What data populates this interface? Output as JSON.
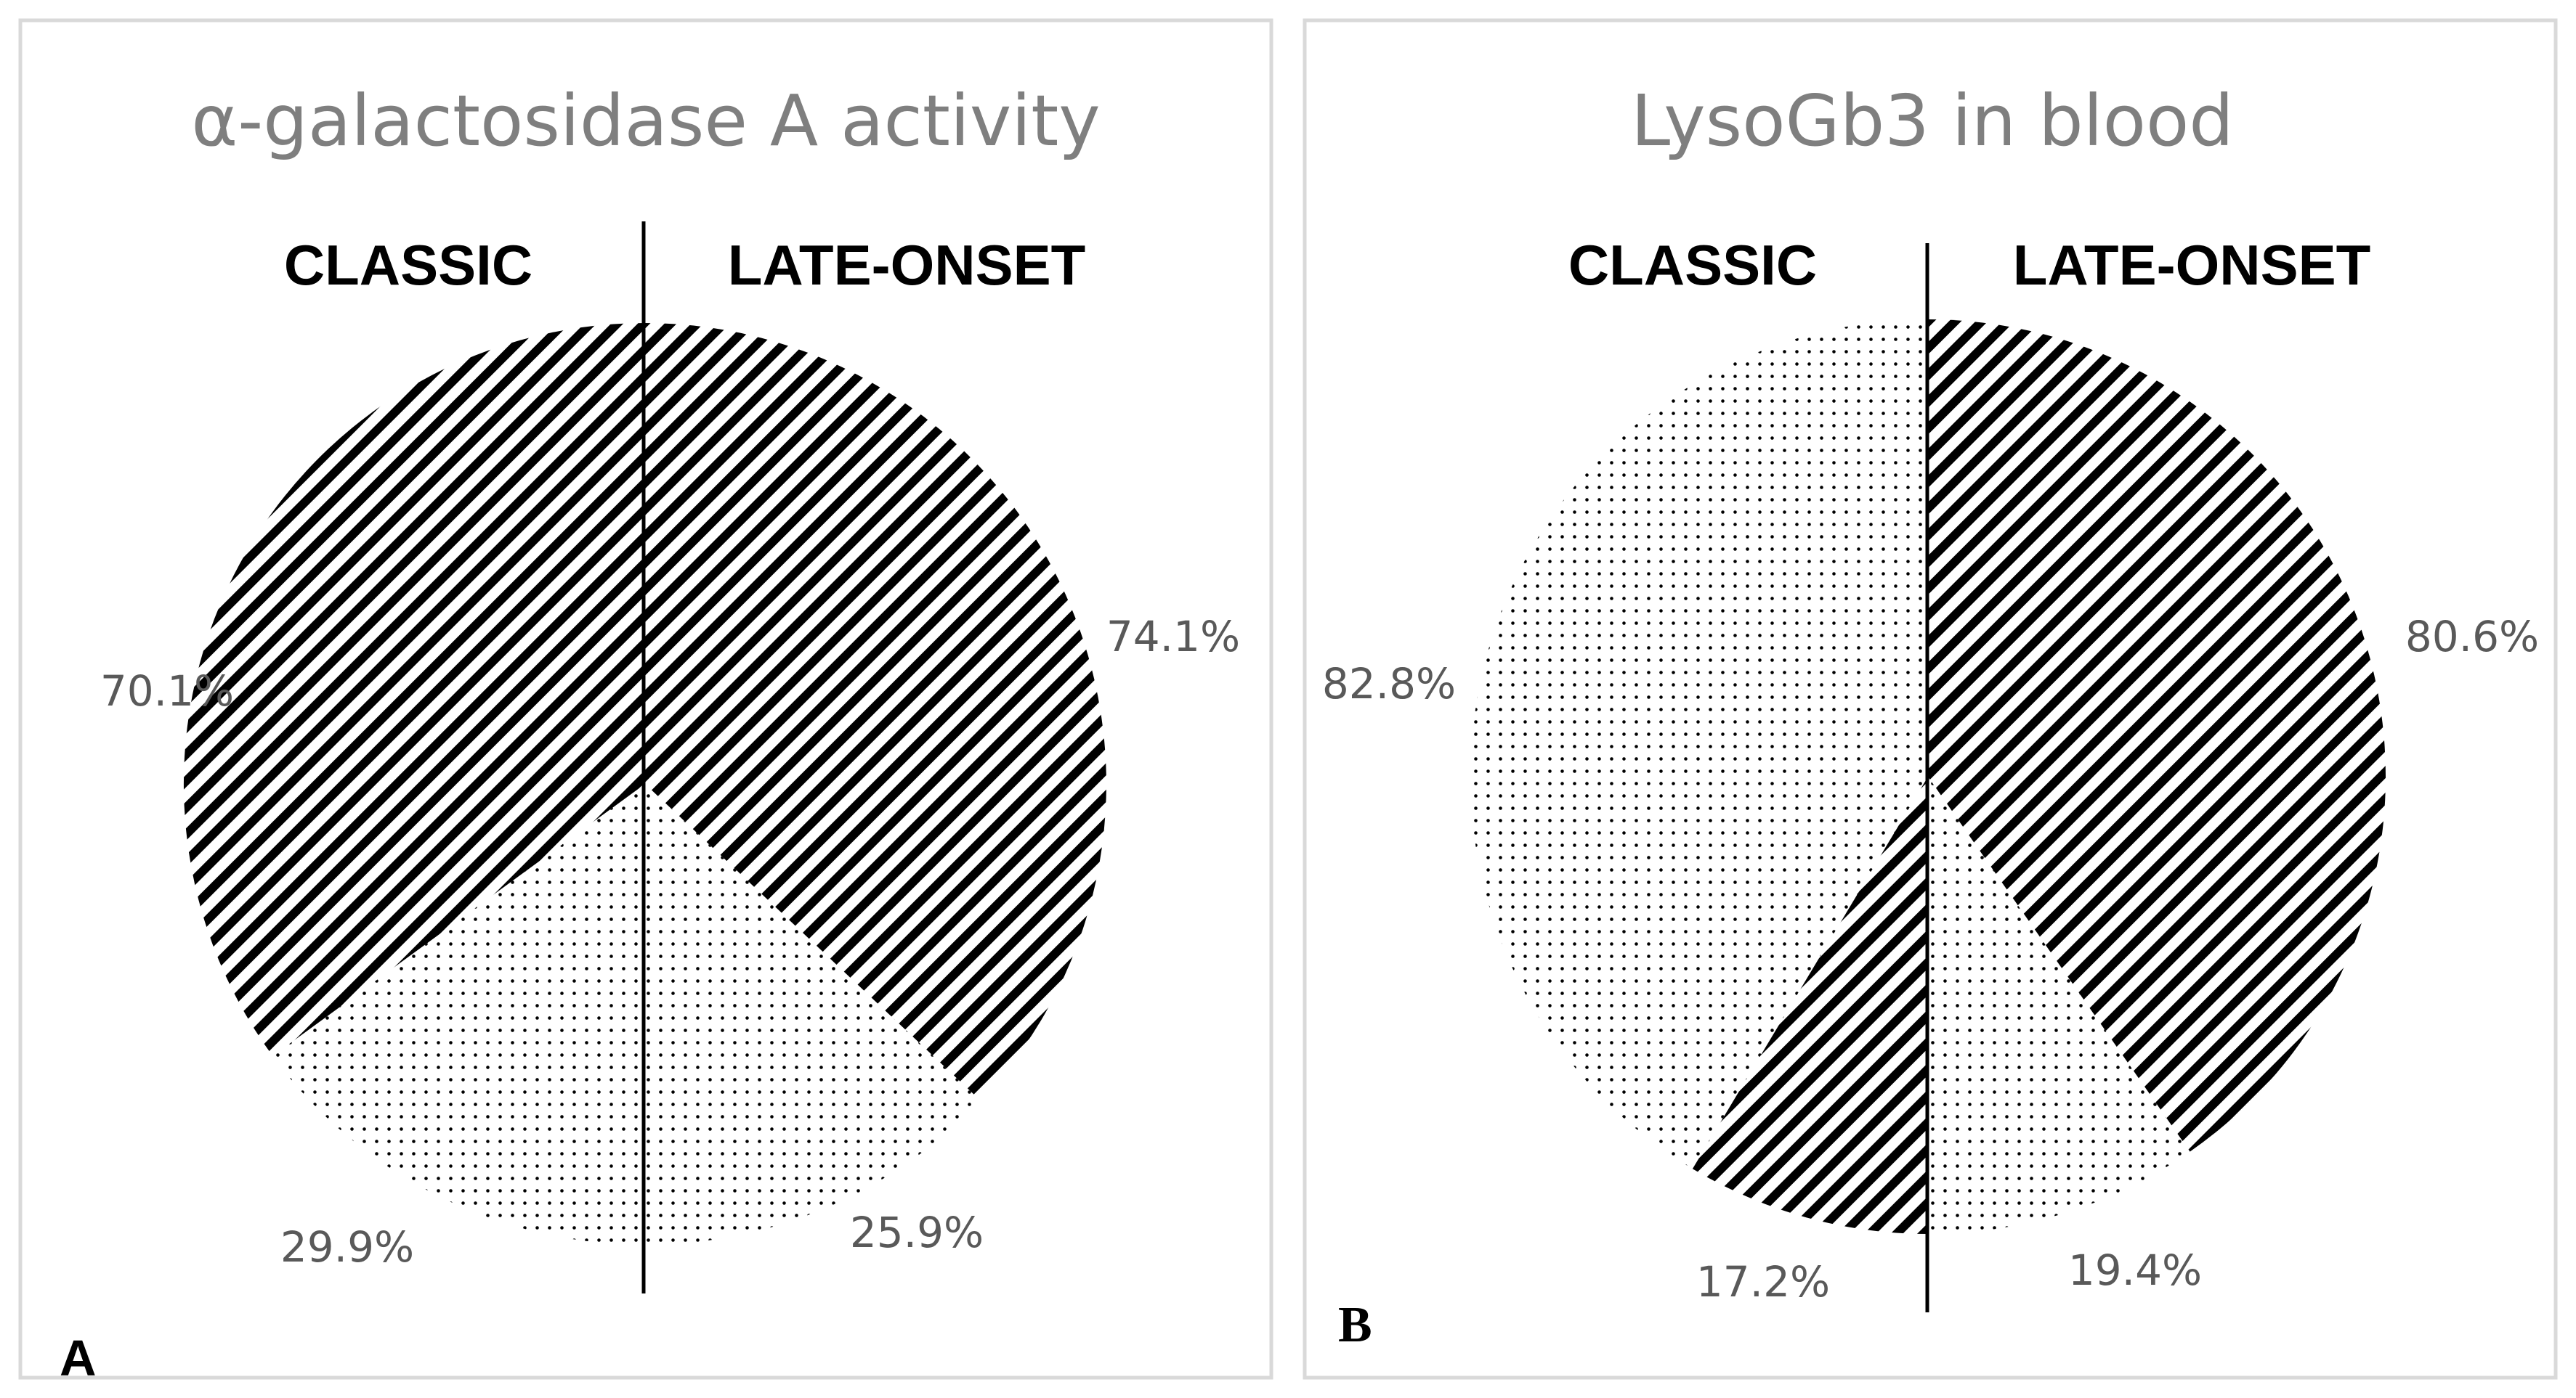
{
  "chart_data": [
    {
      "type": "pie",
      "panel": "A",
      "title": "α-galactosidase A activity",
      "groups": [
        {
          "name": "CLASSIC",
          "slices": [
            {
              "label": "70.1%",
              "value": 70.1,
              "pattern": "striped"
            },
            {
              "label": "29.9%",
              "value": 29.9,
              "pattern": "dotted"
            }
          ]
        },
        {
          "name": "LATE-ONSET",
          "slices": [
            {
              "label": "74.1%",
              "value": 74.1,
              "pattern": "striped"
            },
            {
              "label": "25.9%",
              "value": 25.9,
              "pattern": "dotted"
            }
          ]
        }
      ]
    },
    {
      "type": "pie",
      "panel": "B",
      "title": "LysoGb3 in blood",
      "groups": [
        {
          "name": "CLASSIC",
          "slices": [
            {
              "label": "82.8%",
              "value": 82.8,
              "pattern": "dotted"
            },
            {
              "label": "17.2%",
              "value": 17.2,
              "pattern": "striped"
            }
          ]
        },
        {
          "name": "LATE-ONSET",
          "slices": [
            {
              "label": "80.6%",
              "value": 80.6,
              "pattern": "striped"
            },
            {
              "label": "19.4%",
              "value": 19.4,
              "pattern": "dotted"
            }
          ]
        }
      ]
    }
  ],
  "colors": {
    "title": "#7f7f7f",
    "label": "#595959",
    "ink": "#000000",
    "frame": "#d9d9d9"
  }
}
